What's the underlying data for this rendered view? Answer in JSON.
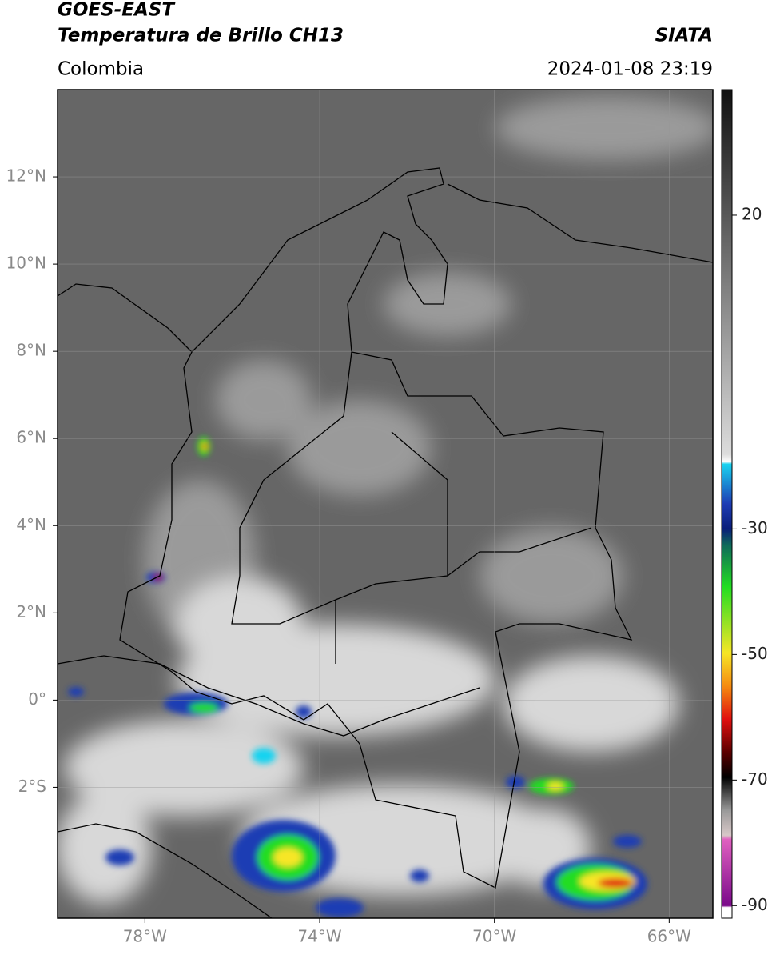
{
  "header": {
    "title": "GOES-EAST",
    "subtitle": "Temperatura de Brillo CH13",
    "region": "Colombia",
    "agency": "SIATA",
    "timestamp": "2024-01-08 23:19"
  },
  "map": {
    "xlim": [
      -80,
      -65
    ],
    "ylim": [
      -5,
      14
    ],
    "grid": true,
    "xticks": [
      {
        "value": -78,
        "label": "78°W"
      },
      {
        "value": -74,
        "label": "74°W"
      },
      {
        "value": -70,
        "label": "70°W"
      },
      {
        "value": -66,
        "label": "66°W"
      }
    ],
    "yticks": [
      {
        "value": 12,
        "label": "12°N"
      },
      {
        "value": 10,
        "label": "10°N"
      },
      {
        "value": 8,
        "label": "8°N"
      },
      {
        "value": 6,
        "label": "6°N"
      },
      {
        "value": 4,
        "label": "4°N"
      },
      {
        "value": 2,
        "label": "2°N"
      },
      {
        "value": 0,
        "label": "0°"
      },
      {
        "value": -2,
        "label": "2°S"
      }
    ]
  },
  "colorbar": {
    "lim": [
      -92,
      40
    ],
    "ticks": [
      20,
      -30,
      -50,
      -70,
      -90
    ]
  }
}
